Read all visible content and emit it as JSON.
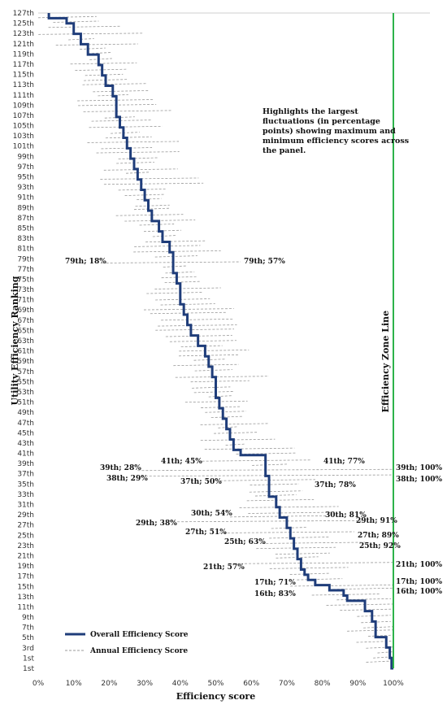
{
  "chart_data": {
    "type": "line",
    "xlabel": "Efficiency score",
    "ylabel": "Utility Efficiency Ranking",
    "xlim": [
      0,
      100
    ],
    "x_ticks": [
      "0%",
      "10%",
      "20%",
      "30%",
      "40%",
      "50%",
      "60%",
      "70%",
      "80%",
      "90%",
      "100%"
    ],
    "y_ticks": [
      "1st",
      "1st",
      "3rd",
      "5th",
      "7th",
      "9th",
      "11th",
      "13th",
      "15th",
      "17th",
      "19th",
      "21th",
      "23th",
      "25th",
      "27th",
      "29th",
      "31th",
      "33th",
      "35th",
      "37th",
      "39th",
      "41th",
      "43th",
      "45th",
      "47th",
      "49th",
      "51th",
      "53th",
      "55th",
      "57th",
      "59th",
      "61th",
      "63th",
      "65th",
      "67th",
      "69th",
      "71th",
      "73th",
      "75th",
      "77th",
      "79th",
      "81th",
      "83th",
      "85th",
      "87th",
      "89th",
      "91th",
      "93th",
      "95th",
      "97th",
      "99th",
      "101th",
      "103th",
      "105th",
      "107th",
      "109th",
      "111th",
      "113th",
      "115th",
      "117th",
      "119th",
      "121th",
      "123th",
      "125th",
      "127th"
    ],
    "reference_line": {
      "label": "Efficiency Zone Line",
      "x": 100,
      "color": "#2db34a"
    },
    "note": "Highlights the largest fluctuations (in percentage points) showing maximum and minimum efficiency scores across the panel.",
    "legend": {
      "position": "bottom-left"
    },
    "series": [
      {
        "name": "Overall Efficiency Score",
        "style": "solid",
        "color": "#1f3d7a",
        "points": [
          [
            100,
            1
          ],
          [
            99.5,
            3
          ],
          [
            99,
            5
          ],
          [
            98,
            7
          ],
          [
            95,
            8
          ],
          [
            95,
            10
          ],
          [
            94,
            12
          ],
          [
            92,
            14
          ],
          [
            87,
            15
          ],
          [
            86,
            16
          ],
          [
            82,
            17
          ],
          [
            78,
            18
          ],
          [
            76,
            19
          ],
          [
            75,
            20
          ],
          [
            74,
            22
          ],
          [
            73,
            24
          ],
          [
            72,
            26
          ],
          [
            71,
            28
          ],
          [
            70,
            30
          ],
          [
            68,
            32
          ],
          [
            67,
            34
          ],
          [
            65,
            36
          ],
          [
            65,
            38
          ],
          [
            64,
            40
          ],
          [
            64,
            42
          ],
          [
            57,
            43
          ],
          [
            55,
            45
          ],
          [
            54,
            47
          ],
          [
            53,
            49
          ],
          [
            52,
            51
          ],
          [
            51,
            53
          ],
          [
            50,
            55
          ],
          [
            50,
            57
          ],
          [
            49,
            59
          ],
          [
            48,
            61
          ],
          [
            47,
            63
          ],
          [
            45,
            65
          ],
          [
            43,
            67
          ],
          [
            42,
            69
          ],
          [
            41,
            71
          ],
          [
            40,
            73
          ],
          [
            40,
            75
          ],
          [
            39,
            77
          ],
          [
            38,
            79
          ],
          [
            38,
            81
          ],
          [
            37,
            83
          ],
          [
            35,
            85
          ],
          [
            34,
            87
          ],
          [
            32,
            89
          ],
          [
            31,
            91
          ],
          [
            30,
            93
          ],
          [
            29,
            95
          ],
          [
            28,
            97
          ],
          [
            27,
            99
          ],
          [
            26,
            101
          ],
          [
            25,
            103
          ],
          [
            24,
            105
          ],
          [
            23,
            107
          ],
          [
            22,
            109
          ],
          [
            22,
            111
          ],
          [
            21,
            113
          ],
          [
            19,
            115
          ],
          [
            18,
            117
          ],
          [
            17,
            119
          ],
          [
            14,
            121
          ],
          [
            12,
            123
          ],
          [
            10,
            125
          ],
          [
            8,
            126
          ],
          [
            3,
            127
          ]
        ]
      },
      {
        "name": "Annual Efficiency Score",
        "style": "dashed",
        "color": "#999999"
      }
    ],
    "annotations": [
      {
        "text": "79th; 18%",
        "rank": 79,
        "value": 18,
        "side": "left"
      },
      {
        "text": "79th; 57%",
        "rank": 79,
        "value": 57,
        "side": "right"
      },
      {
        "text": "41th; 45%",
        "rank": 41,
        "value": 45,
        "side": "left"
      },
      {
        "text": "41th; 77%",
        "rank": 41,
        "value": 77,
        "side": "right"
      },
      {
        "text": "39th; 28%",
        "rank": 39,
        "value": 28,
        "side": "left"
      },
      {
        "text": "39th; 100%",
        "rank": 39,
        "value": 100,
        "side": "right"
      },
      {
        "text": "38th; 29%",
        "rank": 38,
        "value": 29,
        "side": "left"
      },
      {
        "text": "38th; 100%",
        "rank": 38,
        "value": 100,
        "side": "right"
      },
      {
        "text": "37th; 50%",
        "rank": 37,
        "value": 50,
        "side": "left"
      },
      {
        "text": "37th; 78%",
        "rank": 37,
        "value": 78,
        "side": "right"
      },
      {
        "text": "30th; 54%",
        "rank": 30,
        "value": 54,
        "side": "left"
      },
      {
        "text": "30th; 81%",
        "rank": 30,
        "value": 81,
        "side": "right"
      },
      {
        "text": "29th; 38%",
        "rank": 29,
        "value": 38,
        "side": "left"
      },
      {
        "text": "29th; 91%",
        "rank": 29,
        "value": 91,
        "side": "right"
      },
      {
        "text": "27th; 51%",
        "rank": 27,
        "value": 51,
        "side": "left"
      },
      {
        "text": "27th; 89%",
        "rank": 27,
        "value": 89,
        "side": "right"
      },
      {
        "text": "25th; 63%",
        "rank": 25,
        "value": 63,
        "side": "left"
      },
      {
        "text": "25th; 92%",
        "rank": 25,
        "value": 92,
        "side": "right"
      },
      {
        "text": "21th; 57%",
        "rank": 21,
        "value": 57,
        "side": "left"
      },
      {
        "text": "21th; 100%",
        "rank": 21,
        "value": 100,
        "side": "right"
      },
      {
        "text": "17th; 71%",
        "rank": 17,
        "value": 71,
        "side": "left"
      },
      {
        "text": "17th; 100%",
        "rank": 17,
        "value": 100,
        "side": "right"
      },
      {
        "text": "16th; 83%",
        "rank": 16,
        "value": 83,
        "side": "left"
      },
      {
        "text": "16th; 100%",
        "rank": 16,
        "value": 100,
        "side": "right"
      }
    ]
  }
}
